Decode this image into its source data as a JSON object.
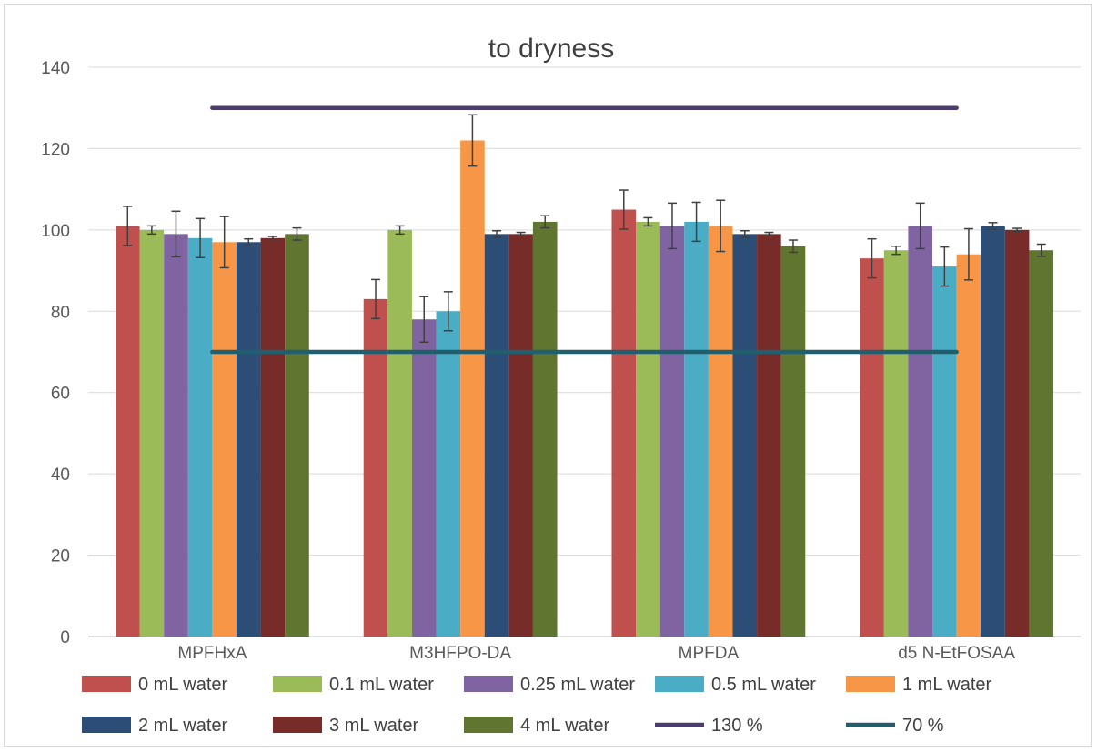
{
  "chart_data": {
    "type": "bar",
    "title": "to dryness",
    "xlabel": "",
    "ylabel": "",
    "ylim": [
      0,
      140
    ],
    "yticks": [
      0,
      20,
      40,
      60,
      80,
      100,
      120,
      140
    ],
    "grid": true,
    "legend_position": "bottom",
    "categories": [
      "MPFHxA",
      "M3HFPO-DA",
      "MPFDA",
      "d5 N-EtFOSAA"
    ],
    "series": [
      {
        "name": "0 mL water",
        "color": "#C0504D",
        "values": [
          101,
          83,
          105,
          93
        ],
        "errors": [
          4.8,
          4.8,
          4.8,
          4.8
        ]
      },
      {
        "name": "0.1 mL water",
        "color": "#9BBB59",
        "values": [
          100,
          100,
          102,
          95
        ],
        "errors": [
          1.0,
          1.0,
          1.0,
          1.0
        ]
      },
      {
        "name": "0.25 mL water",
        "color": "#8064A2",
        "values": [
          99,
          78,
          101,
          101
        ],
        "errors": [
          5.6,
          5.6,
          5.6,
          5.6
        ]
      },
      {
        "name": "0.5 mL water",
        "color": "#4BACC6",
        "values": [
          98,
          80,
          102,
          91
        ],
        "errors": [
          4.8,
          4.8,
          4.8,
          4.8
        ]
      },
      {
        "name": "1 mL water",
        "color": "#F79646",
        "values": [
          97,
          122,
          101,
          94
        ],
        "errors": [
          6.3,
          6.3,
          6.3,
          6.3
        ]
      },
      {
        "name": "2 mL water",
        "color": "#2C4D75",
        "values": [
          97,
          99,
          99,
          101
        ],
        "errors": [
          0.8,
          0.8,
          0.8,
          0.8
        ]
      },
      {
        "name": "3 mL water",
        "color": "#772C2A",
        "values": [
          98,
          99,
          99,
          100
        ],
        "errors": [
          0.4,
          0.4,
          0.4,
          0.4
        ]
      },
      {
        "name": "4 mL water",
        "color": "#5F7530",
        "values": [
          99,
          102,
          96,
          95
        ],
        "errors": [
          1.5,
          1.5,
          1.5,
          1.5
        ]
      }
    ],
    "reference_lines": [
      {
        "name": "130 %",
        "value": 130,
        "color": "#4B3B6E"
      },
      {
        "name": "70 %",
        "value": 70,
        "color": "#215F6E"
      }
    ]
  }
}
